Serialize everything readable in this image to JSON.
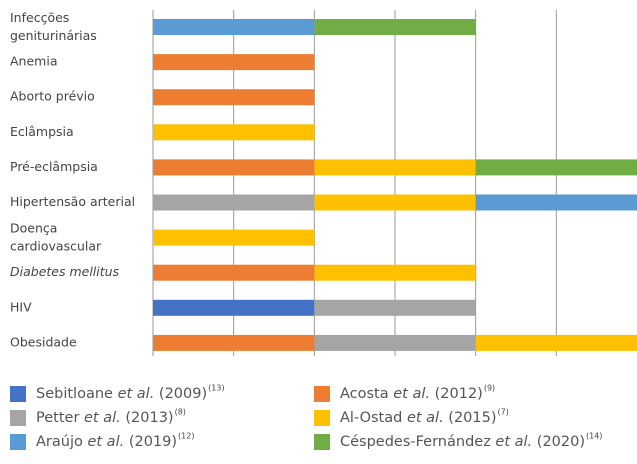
{
  "chart_data": {
    "type": "bar",
    "orientation": "horizontal",
    "stacked": true,
    "categories": [
      "Infecções geniturinárias",
      "Anemia",
      "Aborto prévio",
      "Eclâmpsia",
      "Pré-eclâmpsia",
      "Hipertensão arterial",
      "Doença cardiovascular",
      "Diabetes mellitus",
      "HIV",
      "Obesidade"
    ],
    "series": [
      {
        "name": "Sebitloane et al. (2009)",
        "ref": "(13)",
        "color": "#4472c4",
        "values": [
          null,
          null,
          null,
          null,
          null,
          null,
          null,
          null,
          1,
          null
        ]
      },
      {
        "name": "Acosta et al. (2012)",
        "ref": "(9)",
        "color": "#ed7d31",
        "values": [
          null,
          1,
          1,
          null,
          1,
          null,
          null,
          1,
          null,
          1
        ]
      },
      {
        "name": "Petter et al. (2013)",
        "ref": "(8)",
        "color": "#a5a5a5",
        "values": [
          null,
          null,
          null,
          null,
          null,
          1,
          null,
          null,
          1,
          1
        ]
      },
      {
        "name": "Al-Ostad et al. (2015)",
        "ref": "(7)",
        "color": "#ffc000",
        "values": [
          null,
          null,
          null,
          1,
          1,
          1,
          1,
          1,
          null,
          1
        ]
      },
      {
        "name": "Araújo et al. (2019)",
        "ref": "(12)",
        "color": "#5b9bd5",
        "values": [
          1,
          null,
          null,
          null,
          null,
          1,
          null,
          null,
          null,
          null
        ]
      },
      {
        "name": "Céspedes-Fernández et al. (2020)",
        "ref": "(14)",
        "color": "#70ad47",
        "values": [
          1,
          null,
          null,
          null,
          1,
          null,
          null,
          null,
          null,
          null
        ]
      }
    ],
    "xlim": [
      0,
      3
    ],
    "xticks": [
      0,
      0.5,
      1,
      1.5,
      2,
      2.5
    ],
    "grid": true
  }
}
